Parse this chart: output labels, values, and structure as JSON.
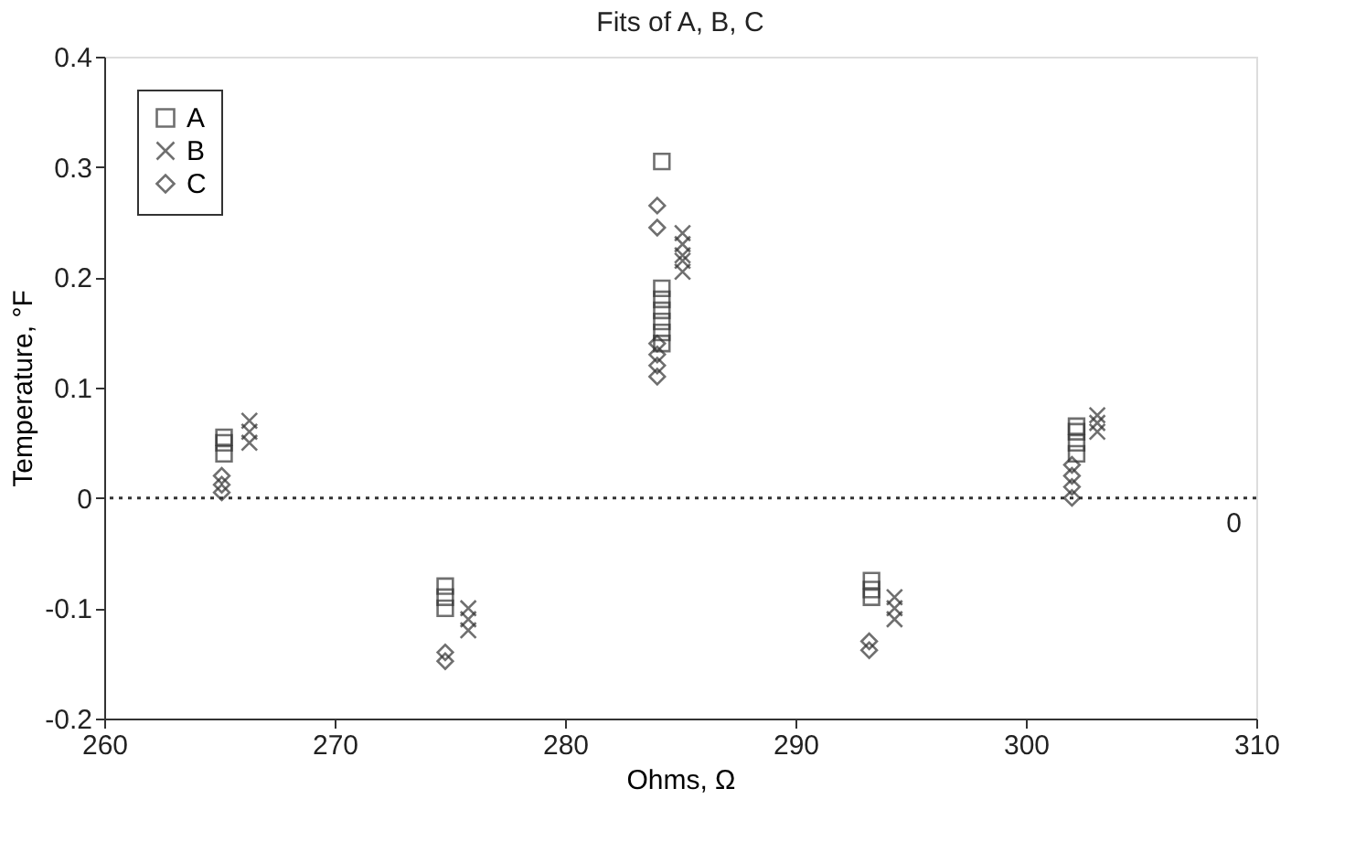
{
  "chart_data": {
    "type": "scatter",
    "title": "Fits of A, B, C",
    "xlabel": "Ohms, Ω",
    "ylabel": "Temperature, °F",
    "xlim": [
      260,
      310
    ],
    "xticks": [
      260,
      270,
      280,
      290,
      300,
      310
    ],
    "ylim": [
      -0.2,
      0.4
    ],
    "yticks": [
      -0.2,
      -0.1,
      0,
      0.1,
      0.2,
      0.3,
      0.4
    ],
    "grid": false,
    "legend": "top left",
    "ref_lines": [
      {
        "axis": "y",
        "value": 0,
        "line_style": "dotted",
        "color": "#333333"
      }
    ],
    "annotations": [
      "0"
    ],
    "series": [
      {
        "name": "A",
        "color": "#333333",
        "marker": "square",
        "x": [
          265.2,
          265.2,
          265.2,
          274.8,
          274.8,
          274.8,
          284.2,
          284.2,
          284.2,
          284.2,
          284.2,
          284.2,
          284.2,
          293.3,
          293.3,
          293.3,
          302.2,
          302.2,
          302.2,
          302.2
        ],
        "values": [
          0.04,
          0.05,
          0.055,
          -0.08,
          -0.09,
          -0.1,
          0.305,
          0.19,
          0.18,
          0.17,
          0.16,
          0.15,
          0.14,
          -0.075,
          -0.083,
          -0.09,
          0.04,
          0.05,
          0.06,
          0.065
        ]
      },
      {
        "name": "B",
        "color": "#333333",
        "marker": "cross",
        "x": [
          266.3,
          266.3,
          266.3,
          275.8,
          275.8,
          275.8,
          285.1,
          285.1,
          285.1,
          285.1,
          285.1,
          294.3,
          294.3,
          294.3,
          303.1,
          303.1,
          303.1
        ],
        "values": [
          0.05,
          0.06,
          0.07,
          -0.1,
          -0.11,
          -0.12,
          0.24,
          0.23,
          0.22,
          0.215,
          0.205,
          -0.09,
          -0.1,
          -0.11,
          0.06,
          0.068,
          0.075
        ]
      },
      {
        "name": "C",
        "color": "#333333",
        "marker": "diamond",
        "x": [
          265.1,
          265.1,
          265.1,
          274.8,
          274.8,
          284.0,
          284.0,
          284.0,
          284.0,
          284.0,
          284.0,
          293.2,
          293.2,
          302.0,
          302.0,
          302.0,
          302.0
        ],
        "values": [
          0.005,
          0.012,
          0.02,
          -0.14,
          -0.148,
          0.265,
          0.245,
          0.14,
          0.13,
          0.12,
          0.11,
          -0.13,
          -0.138,
          0.0,
          0.01,
          0.02,
          0.03
        ]
      }
    ]
  }
}
